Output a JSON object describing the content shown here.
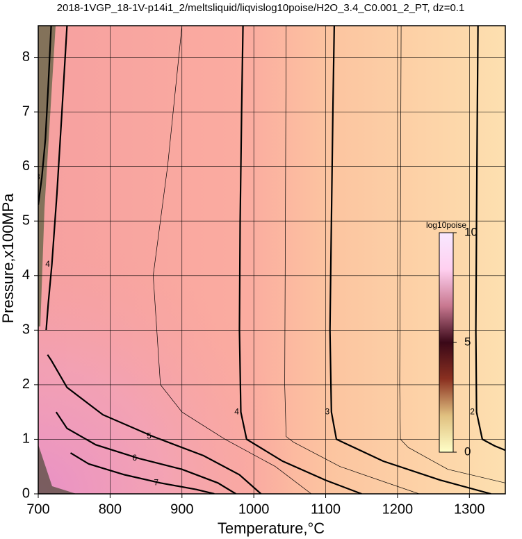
{
  "chart_data": {
    "type": "contour",
    "title": "2018-1VGP_18-1V-p14i1_2/meltsliquid/liqvislog10poise/H2O_3.4_C0.001_2_PT, dz=0.1",
    "xlabel": "Temperature,°C",
    "ylabel": "Pressure,x100MPa",
    "xlim": [
      700,
      1350
    ],
    "ylim": [
      0,
      8.58
    ],
    "xticks": [
      700,
      800,
      900,
      1000,
      1100,
      1200,
      1300
    ],
    "yticks": [
      0,
      1,
      2,
      3,
      4,
      5,
      6,
      7,
      8
    ],
    "grid": true,
    "contours": [
      {
        "level": 4,
        "major": true,
        "x": [
          985,
          983,
          981,
          980,
          982,
          990,
          1040,
          1100,
          1150
        ],
        "y": [
          8.58,
          7,
          5,
          3,
          1.5,
          1.0,
          0.6,
          0.25,
          0
        ]
      },
      {
        "level": 3,
        "major": true,
        "x": [
          1112,
          1110,
          1108,
          1106,
          1108,
          1115,
          1180,
          1260,
          1330
        ],
        "y": [
          8.58,
          7,
          5,
          3,
          1.5,
          1.0,
          0.6,
          0.25,
          0
        ]
      },
      {
        "level": 2,
        "major": true,
        "x": [
          1312,
          1311,
          1310,
          1309,
          1310,
          1318,
          1335,
          1350
        ],
        "y": [
          8.58,
          7,
          5,
          3,
          1.5,
          1.0,
          0.88,
          0.8
        ]
      },
      {
        "level": 4,
        "major": true,
        "x": [
          740,
          733,
          726,
          719,
          714,
          711
        ],
        "y": [
          8.58,
          7,
          5.5,
          4.2,
          3.5,
          3.0
        ]
      },
      {
        "level": 3,
        "major": true,
        "x": [
          718,
          714,
          710,
          705,
          702,
          700
        ],
        "y": [
          8.58,
          7.5,
          6.5,
          5.8,
          5.5,
          5.3
        ]
      },
      {
        "level": 5,
        "major": true,
        "x": [
          713,
          718,
          740,
          790,
          860,
          930,
          980,
          1010
        ],
        "y": [
          2.55,
          2.45,
          1.95,
          1.45,
          1.05,
          0.7,
          0.35,
          0
        ]
      },
      {
        "level": 6,
        "major": true,
        "x": [
          725,
          740,
          780,
          840,
          900,
          950,
          975
        ],
        "y": [
          1.5,
          1.2,
          0.9,
          0.65,
          0.45,
          0.2,
          0
        ]
      },
      {
        "level": 7,
        "major": true,
        "x": [
          745,
          770,
          820,
          870,
          920,
          945
        ],
        "y": [
          0.75,
          0.55,
          0.35,
          0.2,
          0.08,
          0
        ]
      },
      {
        "level": 2.5,
        "major": false,
        "x": [
          1205,
          1204,
          1203,
          1204,
          1215,
          1270,
          1350
        ],
        "y": [
          8.58,
          5,
          2,
          1.0,
          0.85,
          0.45,
          0.2
        ]
      },
      {
        "level": 3.5,
        "major": false,
        "x": [
          1045,
          1044,
          1043,
          1045,
          1055,
          1120,
          1230
        ],
        "y": [
          8.58,
          5,
          2,
          1.05,
          0.95,
          0.5,
          0
        ]
      },
      {
        "level": 4.5,
        "major": false,
        "x": [
          900,
          880,
          860,
          870,
          900,
          960,
          1030,
          1080
        ],
        "y": [
          8.58,
          6,
          4,
          2.0,
          1.5,
          1.0,
          0.5,
          0
        ]
      }
    ],
    "line_color": "#000000",
    "colorbar": {
      "label": "log10poise",
      "lim": [
        0,
        10
      ],
      "ticks": [
        0,
        5,
        10
      ],
      "colors": [
        "#ffffc8",
        "#e0c080",
        "#8a3020",
        "#3a0818",
        "#c87890",
        "#ffd0f0",
        "#f8e8ff"
      ]
    }
  }
}
